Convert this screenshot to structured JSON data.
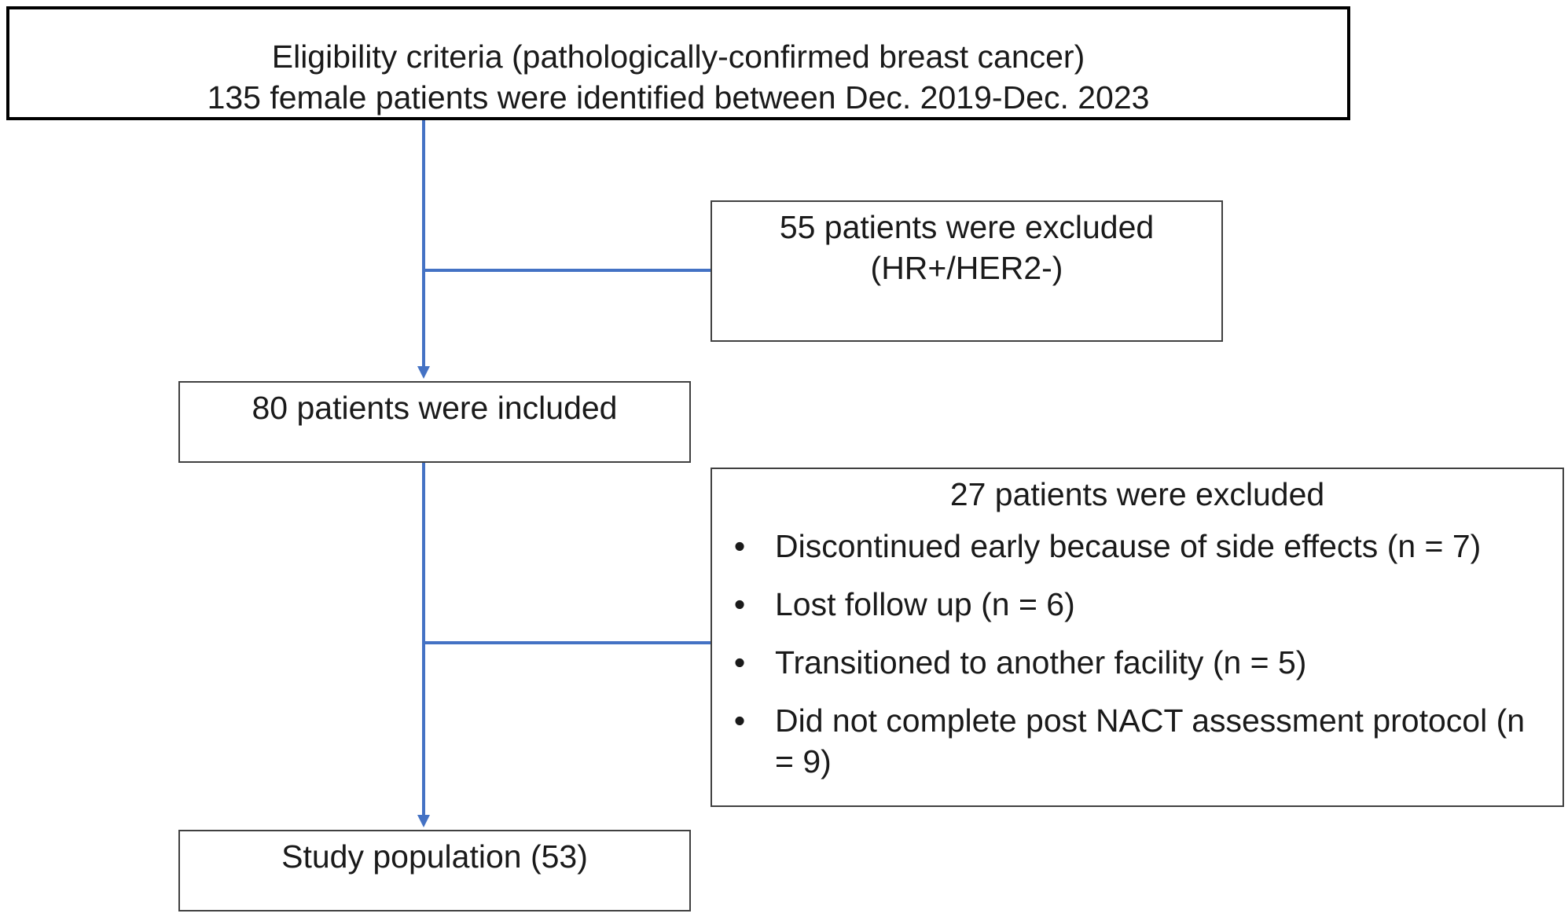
{
  "flowchart": {
    "eligibility": {
      "line1": "Eligibility criteria (pathologically-confirmed breast cancer)",
      "line2": "135 female patients were identified between Dec. 2019-Dec. 2023"
    },
    "exclusion_1": {
      "line1": "55 patients were excluded",
      "line2": "(HR+/HER2-)"
    },
    "included": {
      "label": "80 patients were included"
    },
    "exclusion_2": {
      "title": "27 patients were excluded",
      "reasons": [
        "Discontinued early because of side effects (n = 7)",
        "Lost follow up (n = 6)",
        "Transitioned to another facility (n = 5)",
        "Did not complete post NACT assessment protocol (n = 9)"
      ]
    },
    "study_population": {
      "label": "Study population (53)"
    }
  },
  "colors": {
    "connector": "#4472C4",
    "box_border": "#404040",
    "text": "#1a1a1a"
  }
}
